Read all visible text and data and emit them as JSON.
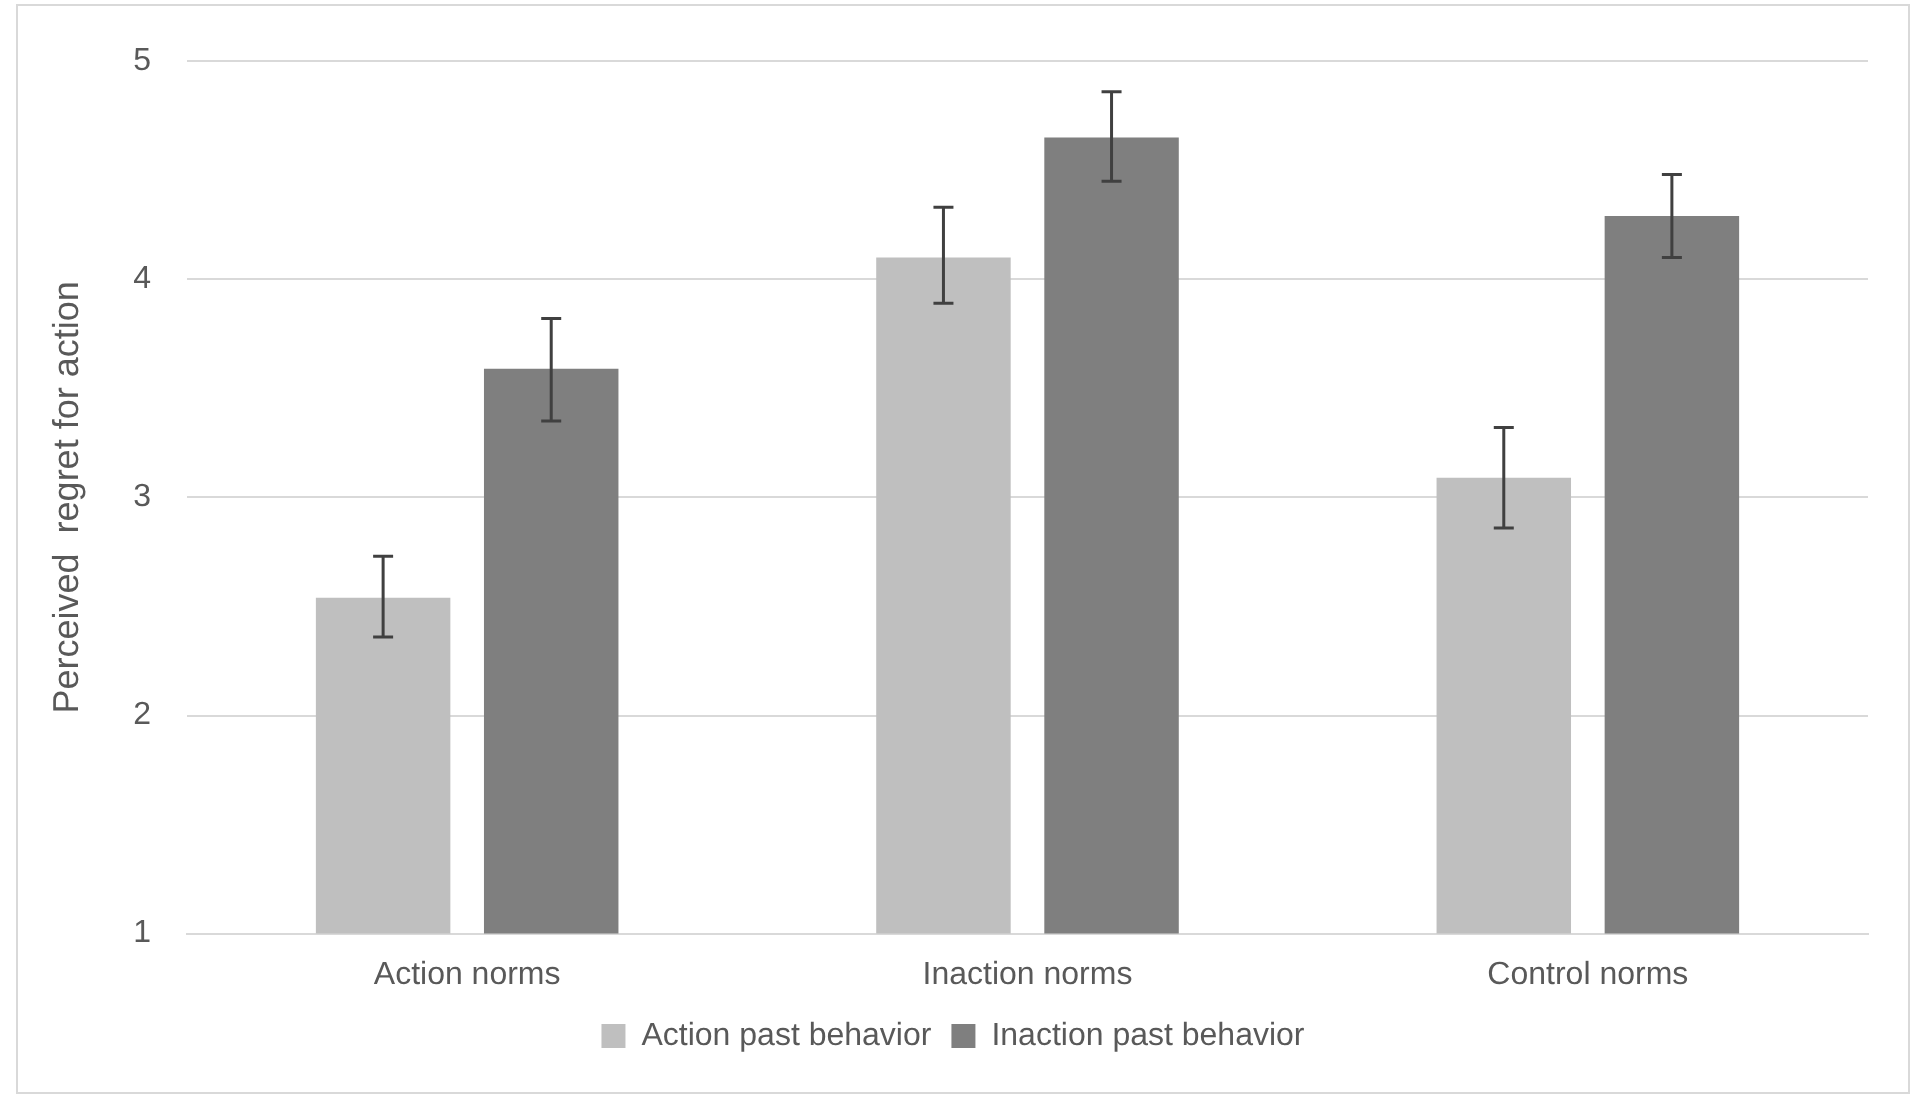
{
  "chart_data": {
    "type": "bar",
    "ylabel": "Perceived  regret for action",
    "categories": [
      "Action norms",
      "Inaction norms",
      "Control norms"
    ],
    "series": [
      {
        "name": "Action past behavior",
        "color": "#bfbfbf",
        "values": [
          2.54,
          4.1,
          3.09
        ],
        "errors": [
          [
            2.36,
            2.73
          ],
          [
            3.89,
            4.33
          ],
          [
            2.86,
            3.32
          ]
        ]
      },
      {
        "name": "Inaction past behavior",
        "color": "#7f7f7f",
        "values": [
          3.59,
          4.65,
          4.29
        ],
        "errors": [
          [
            3.35,
            3.82
          ],
          [
            4.45,
            4.86
          ],
          [
            4.1,
            4.48
          ]
        ]
      }
    ],
    "ylim": [
      1,
      5
    ],
    "yticks": [
      1,
      2,
      3,
      4,
      5
    ],
    "grid": "y",
    "legend": "bottom"
  }
}
